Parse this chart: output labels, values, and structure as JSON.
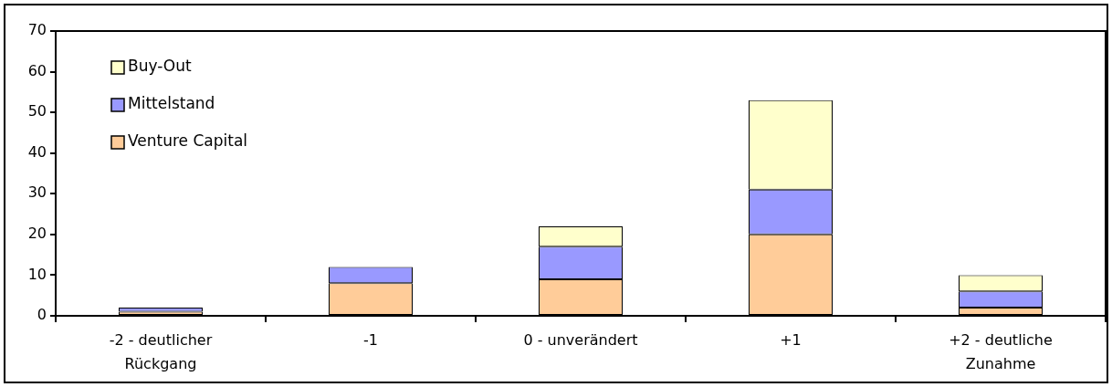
{
  "chart_data": {
    "type": "bar",
    "categories": [
      "-2 - deutlicher Rückgang",
      "-1",
      "0 - unverändert",
      "+1",
      "+2 - deutliche Zunahme"
    ],
    "stacked": true,
    "series": [
      {
        "name": "Venture Capital",
        "color": "#ffcc99",
        "values": [
          1,
          8,
          9,
          20,
          2
        ]
      },
      {
        "name": "Mittelstand",
        "color": "#9999ff",
        "values": [
          1,
          4,
          8,
          11,
          4
        ]
      },
      {
        "name": "Buy-Out",
        "color": "#ffffcc",
        "values": [
          0,
          0,
          5,
          22,
          4
        ]
      }
    ],
    "ylim": [
      0,
      70
    ],
    "yticks": [
      0,
      10,
      20,
      30,
      40,
      50,
      60,
      70
    ],
    "legend": "top left"
  }
}
